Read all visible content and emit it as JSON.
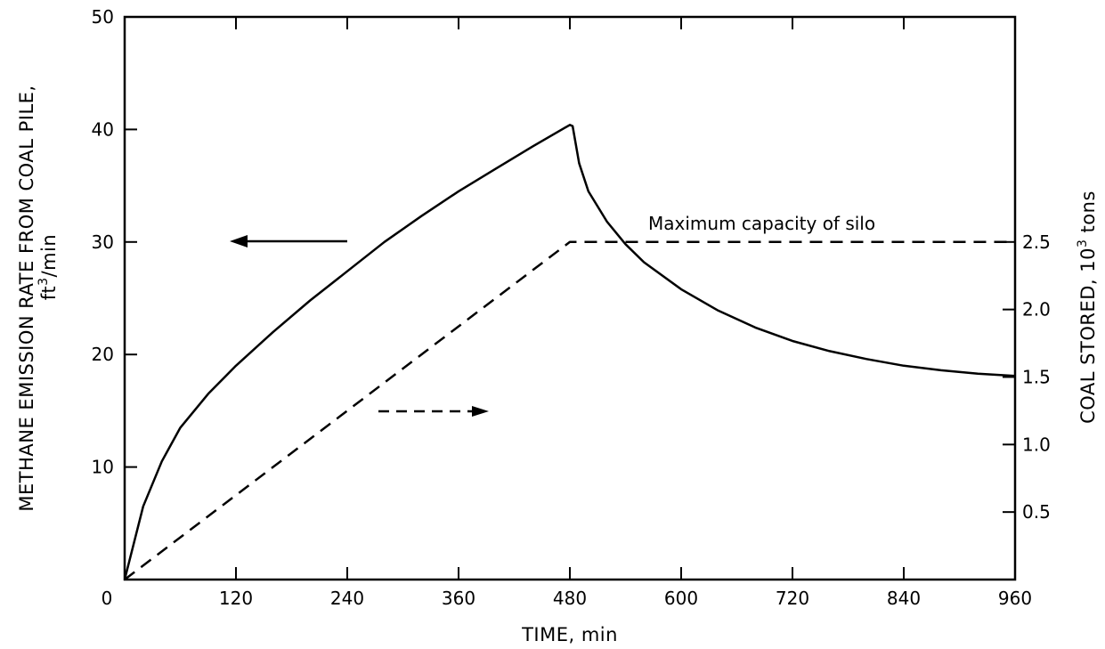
{
  "chart_data": {
    "type": "line",
    "xlabel": "TIME, min",
    "ylabel_left": {
      "line1": "METHANE EMISSION RATE FROM COAL PILE,",
      "line2_prefix": "ft",
      "line2_sup": "3",
      "line2_suffix": "/min"
    },
    "ylabel_right": {
      "prefix": "COAL STORED,  10",
      "sup": "3",
      "suffix": " tons"
    },
    "xlim": [
      0,
      960
    ],
    "ylim_left": [
      0,
      50
    ],
    "ylim_right": [
      0,
      4.1667
    ],
    "x_ticks": [
      0,
      120,
      240,
      360,
      480,
      600,
      720,
      840,
      960
    ],
    "x_tick_labels": [
      "0",
      "120",
      "240",
      "360",
      "480",
      "600",
      "720",
      "840",
      "960"
    ],
    "y_left_ticks": [
      10,
      20,
      30,
      40,
      50
    ],
    "y_left_tick_labels": [
      "10",
      "20",
      "30",
      "40",
      "50"
    ],
    "y_right_ticks": [
      0.5,
      1.0,
      1.5,
      2.0,
      2.5
    ],
    "y_right_tick_labels": [
      "0.5",
      "1.0",
      "1.5",
      "2.0",
      "2.5"
    ],
    "grid": false,
    "series": [
      {
        "axis": "left",
        "style": "solid",
        "x": [
          0,
          20,
          40,
          60,
          90,
          120,
          160,
          200,
          240,
          280,
          320,
          360,
          400,
          440,
          480,
          483,
          490,
          500,
          520,
          540,
          560,
          600,
          640,
          680,
          720,
          760,
          800,
          840,
          880,
          920,
          960
        ],
        "values": [
          0,
          6.5,
          10.5,
          13.5,
          16.5,
          19.0,
          22.0,
          24.8,
          27.4,
          30.0,
          32.3,
          34.5,
          36.5,
          38.5,
          40.4,
          40.3,
          37.0,
          34.5,
          31.8,
          29.8,
          28.2,
          25.8,
          23.9,
          22.4,
          21.2,
          20.3,
          19.6,
          19.0,
          18.6,
          18.3,
          18.1
        ]
      },
      {
        "axis": "right",
        "style": "dashed",
        "x": [
          0,
          480,
          960
        ],
        "values": [
          0,
          2.5,
          2.5
        ]
      }
    ],
    "annotations": {
      "silo_label": "Maximum capacity of  silo"
    },
    "indicator_arrows": [
      {
        "style": "solid",
        "direction": "left",
        "refers_to_axis": "left"
      },
      {
        "style": "dashed",
        "direction": "right",
        "refers_to_axis": "right"
      }
    ]
  }
}
